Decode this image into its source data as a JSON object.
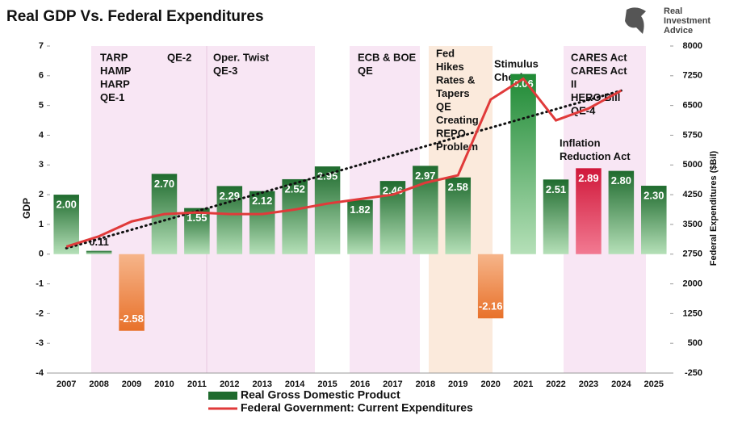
{
  "chart_data": {
    "type": "bar",
    "title": "Real GDP Vs. Federal Expenditures",
    "brand": [
      "Real",
      "Investment",
      "Advice"
    ],
    "ylabel": "GDP",
    "y2label": "Federal Expenditures ($Bil)",
    "categories": [
      "2007",
      "2008",
      "2009",
      "2010",
      "2011",
      "2012",
      "2013",
      "2014",
      "2015",
      "2016",
      "2017",
      "2018",
      "2019",
      "2020",
      "2021",
      "2022",
      "2023",
      "2024",
      "2025"
    ],
    "series": [
      {
        "name": "Real Gross Domestic Product",
        "type": "bar",
        "color": "#1f6b2e",
        "colors": [
          "#1f6b2e",
          "#1f6b2e",
          "#e8712a",
          "#1f6b2e",
          "#1f6b2e",
          "#1f6b2e",
          "#1f6b2e",
          "#1f6b2e",
          "#1f6b2e",
          "#1f6b2e",
          "#1f6b2e",
          "#1f6b2e",
          "#1f6b2e",
          "#e8712a",
          "#1f8a35",
          "#1f6b2e",
          "#d0183a",
          "#1f6b2e",
          "#1f6b2e"
        ],
        "values": [
          2.0,
          0.11,
          -2.58,
          2.7,
          1.55,
          2.29,
          2.12,
          2.52,
          2.95,
          1.82,
          2.46,
          2.97,
          2.58,
          -2.16,
          6.06,
          2.51,
          2.89,
          2.8,
          2.3
        ],
        "value_labels": [
          "2.00",
          "0.11",
          "-2.58",
          "2.70",
          "1.55",
          "2.29",
          "2.12",
          "2.52",
          "2.95",
          "1.82",
          "2.46",
          "2.97",
          "2.58",
          "-2.16",
          "6.06",
          "2.51",
          "2.89",
          "2.80",
          "2.30"
        ]
      },
      {
        "name": "Federal Government: Current Expenditures",
        "type": "line",
        "axis": "y2",
        "color": "#e03a3a",
        "values": [
          2940,
          3200,
          3575,
          3760,
          3800,
          3760,
          3760,
          3875,
          4025,
          4140,
          4250,
          4550,
          4740,
          6650,
          7175,
          6125,
          6425,
          6875,
          null
        ]
      }
    ],
    "annotations": [
      [
        "TARP",
        "HAMP",
        "HARP",
        "QE-1"
      ],
      [
        "QE-2"
      ],
      [
        "Oper. Twist",
        "QE-3"
      ],
      [
        "ECB & BOE",
        "QE"
      ],
      [
        "Fed",
        "Hikes",
        "Rates &",
        "Tapers",
        "QE",
        "Creating",
        "REPO",
        "Problem"
      ],
      [
        "Stimulus",
        "Checks"
      ],
      [
        "CARES Act",
        "CARES Act",
        "II",
        "HERO Bill",
        "QE-4"
      ],
      [
        "Inflation",
        "Reduction Act"
      ]
    ],
    "ylim": [
      -4,
      7
    ],
    "yticks": [
      -4,
      -3,
      -2,
      -1,
      0,
      1,
      2,
      3,
      4,
      5,
      6,
      7
    ],
    "y2lim": [
      -250,
      8000
    ],
    "y2ticks": [
      -250,
      500,
      1250,
      2000,
      2750,
      3500,
      4250,
      5000,
      5750,
      6500,
      7250,
      8000
    ]
  }
}
